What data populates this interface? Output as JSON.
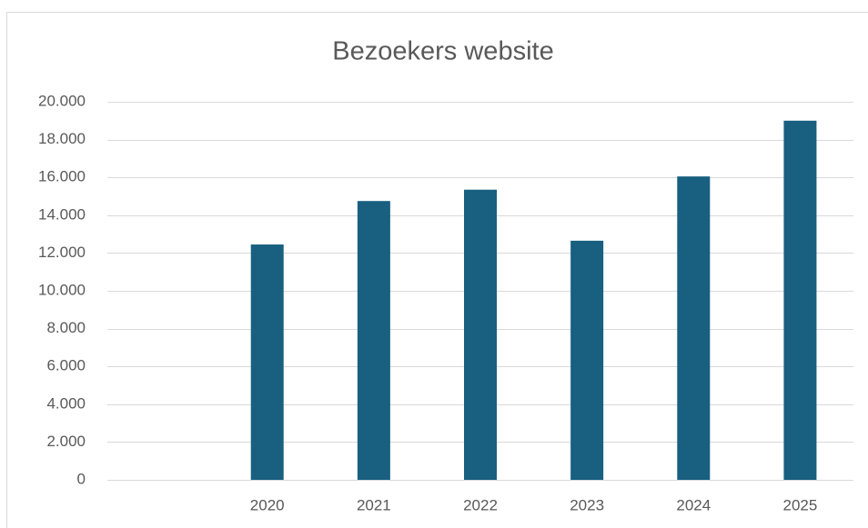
{
  "chart_data": {
    "type": "bar",
    "title": "Bezoekers website",
    "categories": [
      null,
      "2020",
      "2021",
      "2022",
      "2023",
      "2024",
      "2025"
    ],
    "values": [
      null,
      12450,
      14750,
      15350,
      12650,
      16050,
      19000
    ],
    "color": "#185f80",
    "ylim": [
      0,
      20000
    ],
    "yticks": [
      0,
      {
        "value": 2000,
        "label": "2.000"
      },
      {
        "value": 4000,
        "label": "4.000"
      },
      {
        "value": 6000,
        "label": "6.000"
      },
      {
        "value": 8000,
        "label": "8.000"
      },
      {
        "value": 10000,
        "label": "10.000"
      },
      {
        "value": 12000,
        "label": "12.000"
      },
      {
        "value": 14000,
        "label": "14.000"
      },
      {
        "value": 16000,
        "label": "16.000"
      },
      {
        "value": 18000,
        "label": "18.000"
      },
      {
        "value": 20000,
        "label": "20.000"
      }
    ],
    "grid": true
  }
}
